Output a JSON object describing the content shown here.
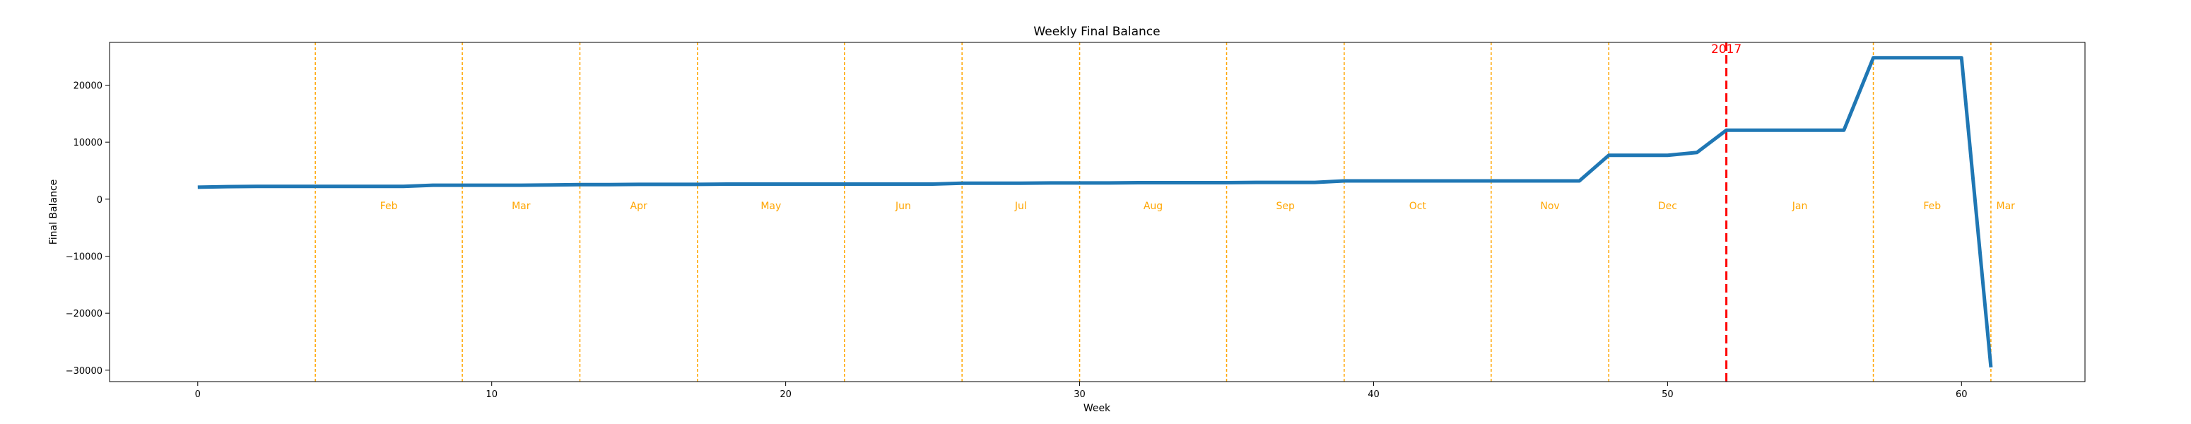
{
  "chart_data": {
    "type": "line",
    "title": "Weekly Final Balance",
    "xlabel": "Week",
    "ylabel": "Final Balance",
    "xlim": [
      -3,
      64.2
    ],
    "ylim": [
      -32000,
      27500
    ],
    "xticks": [
      0,
      10,
      20,
      30,
      40,
      50,
      60
    ],
    "yticks": [
      -30000,
      -20000,
      -10000,
      0,
      10000,
      20000
    ],
    "grid": false,
    "legend": "none",
    "colors": {
      "series": "#1f77b4",
      "month_lines": "#ffa500",
      "month_text": "#ffa500",
      "year_line": "#ff0000",
      "year_text": "#ff0000"
    },
    "series": [
      {
        "x": [
          0,
          1,
          2,
          3,
          4,
          5,
          6,
          7,
          8,
          9,
          10,
          11,
          12,
          13,
          14,
          15,
          16,
          17,
          18,
          19,
          20,
          21,
          22,
          23,
          24,
          25,
          26,
          27,
          28,
          29,
          30,
          31,
          32,
          33,
          34,
          35,
          36,
          37,
          38,
          39,
          40,
          41,
          42,
          43,
          44,
          45,
          46,
          47,
          48,
          49,
          50,
          51,
          52,
          53,
          54,
          55,
          56,
          57,
          58,
          59,
          60,
          61
        ],
        "values": [
          2100,
          2200,
          2250,
          2250,
          2250,
          2250,
          2250,
          2250,
          2450,
          2450,
          2450,
          2450,
          2500,
          2550,
          2550,
          2600,
          2600,
          2600,
          2650,
          2650,
          2650,
          2650,
          2650,
          2650,
          2650,
          2650,
          2800,
          2800,
          2800,
          2850,
          2850,
          2850,
          2900,
          2900,
          2900,
          2900,
          2950,
          2950,
          2950,
          3200,
          3200,
          3200,
          3200,
          3200,
          3200,
          3200,
          3200,
          3200,
          7700,
          7700,
          7700,
          8200,
          12100,
          12100,
          12100,
          12100,
          12100,
          24800,
          24800,
          24800,
          24800,
          -29500
        ]
      }
    ],
    "month_boundaries": [
      4,
      9,
      13,
      17,
      22,
      26,
      30,
      35,
      39,
      44,
      48,
      57,
      61
    ],
    "month_labels": [
      {
        "text": "Feb",
        "x": 6.5
      },
      {
        "text": "Mar",
        "x": 11
      },
      {
        "text": "Apr",
        "x": 15
      },
      {
        "text": "May",
        "x": 19.5
      },
      {
        "text": "Jun",
        "x": 24
      },
      {
        "text": "Jul",
        "x": 28
      },
      {
        "text": "Aug",
        "x": 32.5
      },
      {
        "text": "Sep",
        "x": 37
      },
      {
        "text": "Oct",
        "x": 41.5
      },
      {
        "text": "Nov",
        "x": 46
      },
      {
        "text": "Dec",
        "x": 50
      },
      {
        "text": "Jan",
        "x": 54.5
      },
      {
        "text": "Feb",
        "x": 59
      },
      {
        "text": "Mar",
        "x": 61.5
      }
    ],
    "month_label_y": -500,
    "year_markers": [
      {
        "x": 52,
        "text": "2017"
      }
    ]
  }
}
